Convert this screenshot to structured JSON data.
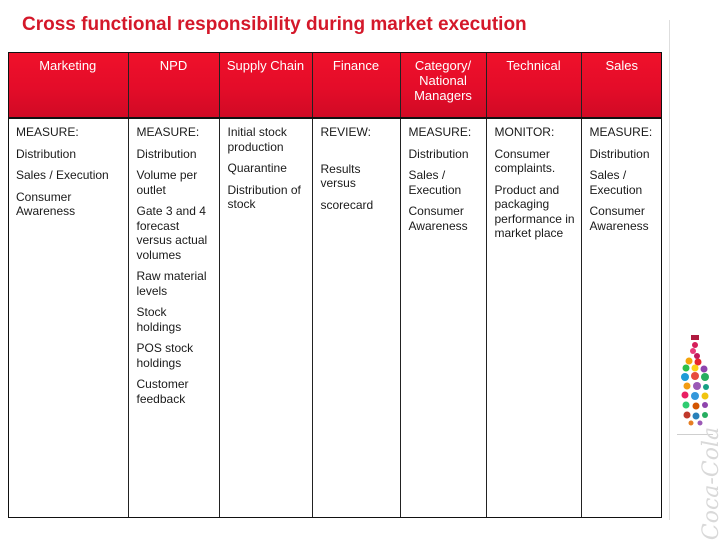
{
  "title": "Cross functional responsibility during market execution",
  "table": {
    "headers": [
      "Marketing",
      "NPD",
      "Supply Chain",
      "Finance",
      "Category/ National Managers",
      "Technical",
      "Sales"
    ],
    "columns": [
      [
        "MEASURE:",
        "Distribution",
        "Sales / Execution",
        "Consumer Awareness"
      ],
      [
        "MEASURE:",
        "Distribution",
        "Volume per outlet",
        "Gate 3 and 4 forecast versus actual volumes",
        "Raw material levels",
        "Stock holdings",
        "POS stock holdings",
        "Customer feedback"
      ],
      [
        "Initial stock production",
        "Quarantine",
        "Distribution of stock"
      ],
      [
        "REVIEW:",
        "Results versus",
        "scorecard"
      ],
      [
        "MEASURE:",
        "Distribution",
        "Sales / Execution",
        "Consumer Awareness"
      ],
      [
        "MONITOR:",
        "Consumer complaints.",
        "Product and packaging performance in market place"
      ],
      [
        "MEASURE:",
        "Distribution",
        "Sales / Execution",
        "Consumer Awareness"
      ]
    ]
  },
  "brand": {
    "wordmark": "Coca-Cola",
    "bottle_icon": "coca-cola-dotted-bottle-icon",
    "accent": "#e40c29",
    "title_color": "#d4182a"
  }
}
